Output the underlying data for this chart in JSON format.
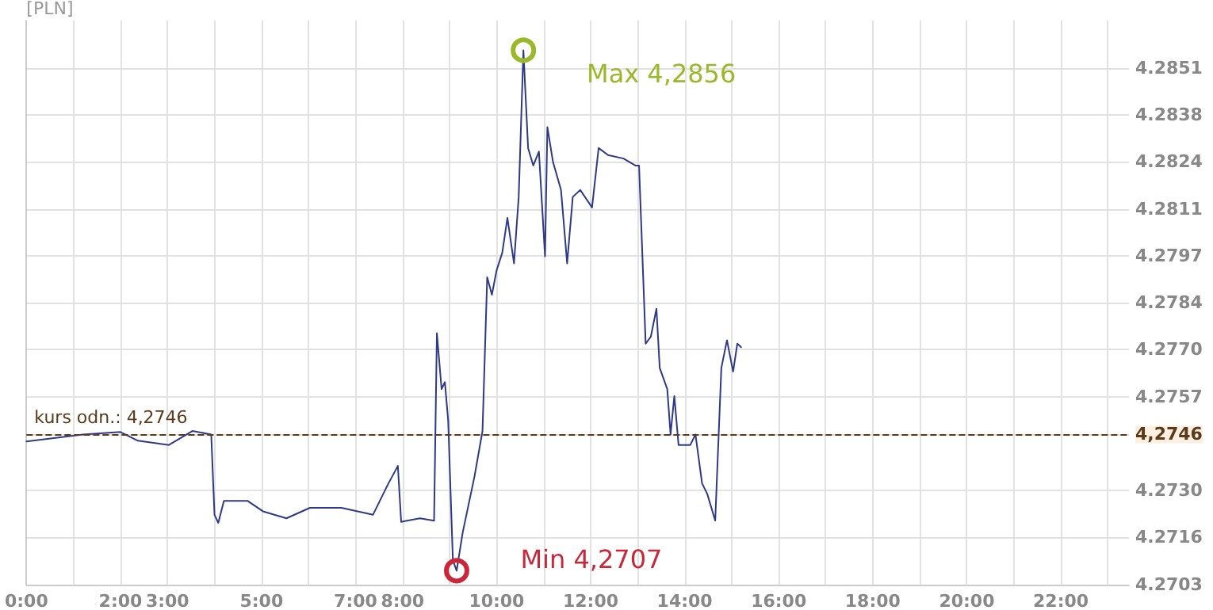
{
  "chart_data": {
    "type": "line",
    "ylabel": "[PLN]",
    "x": [
      0,
      1.2,
      2.0,
      2.37,
      3.03,
      3.53,
      3.93,
      4.0,
      4.08,
      4.2,
      4.7,
      5.03,
      5.53,
      6.03,
      6.7,
      7.37,
      7.7,
      7.9,
      7.97,
      8.37,
      8.67,
      8.73,
      8.83,
      8.9,
      8.97,
      9.07,
      9.15,
      9.28,
      9.53,
      9.7,
      9.8,
      9.9,
      10.0,
      10.12,
      10.23,
      10.37,
      10.47,
      10.57,
      10.67,
      10.78,
      10.9,
      11.03,
      11.08,
      11.2,
      11.37,
      11.5,
      11.62,
      11.78,
      12.03,
      12.17,
      12.37,
      12.7,
      12.95,
      13.03,
      13.17,
      13.28,
      13.4,
      13.47,
      13.63,
      13.7,
      13.78,
      13.87,
      14.12,
      14.23,
      14.37,
      14.48,
      14.65,
      14.78,
      14.9,
      15.03,
      15.12,
      15.2
    ],
    "series": [
      {
        "color": "#2e3a87",
        "values": [
          4.2744,
          4.2746,
          4.27467,
          4.27442,
          4.2743,
          4.2747,
          4.2746,
          4.2723,
          4.27207,
          4.2727,
          4.2727,
          4.2724,
          4.2722,
          4.2725,
          4.2725,
          4.2723,
          4.2732,
          4.2737,
          4.2721,
          4.2722,
          4.27213,
          4.2775,
          4.2759,
          4.2761,
          4.275,
          4.271,
          4.2707,
          4.2718,
          4.2734,
          4.2747,
          4.2791,
          4.2786,
          4.2793,
          4.2798,
          4.2808,
          4.2795,
          4.2814,
          4.2856,
          4.2828,
          4.2823,
          4.2827,
          4.2797,
          4.2834,
          4.2824,
          4.2816,
          4.2795,
          4.2814,
          4.2816,
          4.2811,
          4.2828,
          4.2826,
          4.2825,
          4.2823,
          4.2823,
          4.2772,
          4.2774,
          4.2782,
          4.2765,
          4.2759,
          4.2746,
          4.2757,
          4.2743,
          4.2743,
          4.2746,
          4.2732,
          4.2729,
          4.27213,
          4.2765,
          4.2773,
          4.2764,
          4.2772,
          4.2771
        ]
      }
    ],
    "xlim": [
      0,
      23.45
    ],
    "xticks": [
      {
        "value": 0,
        "label": "0:00"
      },
      {
        "value": 1,
        "label": null
      },
      {
        "value": 2,
        "label": "2:00"
      },
      {
        "value": 3,
        "label": "3:00"
      },
      {
        "value": 4,
        "label": null
      },
      {
        "value": 5,
        "label": "5:00"
      },
      {
        "value": 6,
        "label": null
      },
      {
        "value": 7,
        "label": "7:00"
      },
      {
        "value": 8,
        "label": "8:00"
      },
      {
        "value": 9,
        "label": null
      },
      {
        "value": 10,
        "label": "10:00"
      },
      {
        "value": 11,
        "label": null
      },
      {
        "value": 12,
        "label": "12:00"
      },
      {
        "value": 13,
        "label": null
      },
      {
        "value": 14,
        "label": "14:00"
      },
      {
        "value": 15,
        "label": null
      },
      {
        "value": 16,
        "label": "16:00"
      },
      {
        "value": 17,
        "label": null
      },
      {
        "value": 18,
        "label": "18:00"
      },
      {
        "value": 19,
        "label": null
      },
      {
        "value": 20,
        "label": "20:00"
      },
      {
        "value": 21,
        "label": null
      },
      {
        "value": 22,
        "label": "22:00"
      },
      {
        "value": 23,
        "label": null
      }
    ],
    "ylim": [
      4.2703,
      4.28645
    ],
    "yticks": [
      {
        "value": 4.2703,
        "label": "4.2703"
      },
      {
        "value": 4.27165,
        "label": "4.2716"
      },
      {
        "value": 4.27299,
        "label": "4.2730"
      },
      {
        "value": 4.2746,
        "label": "4,2746"
      },
      {
        "value": 4.27568,
        "label": "4.2757"
      },
      {
        "value": 4.27703,
        "label": "4.2770"
      },
      {
        "value": 4.27837,
        "label": "4.2784"
      },
      {
        "value": 4.27972,
        "label": "4.2797"
      },
      {
        "value": 4.28106,
        "label": "4.2811"
      },
      {
        "value": 4.28241,
        "label": "4.2824"
      },
      {
        "value": 4.28375,
        "label": "4.2838"
      },
      {
        "value": 4.2851,
        "label": "4.2851"
      }
    ],
    "ref_lines": [
      {
        "axis": "y",
        "value": 4.2746,
        "label": "kurs odn.: 4,2746",
        "color": "#5a3a1a",
        "line_style": "dashed"
      }
    ],
    "annotations": [
      {
        "text": "Max 4,2856",
        "x": 10.57,
        "y": 4.2856
      },
      {
        "text": "Min 4,2707",
        "x": 9.15,
        "y": 4.2707
      }
    ],
    "grid": true,
    "marker": "none",
    "line_style": "solid"
  }
}
